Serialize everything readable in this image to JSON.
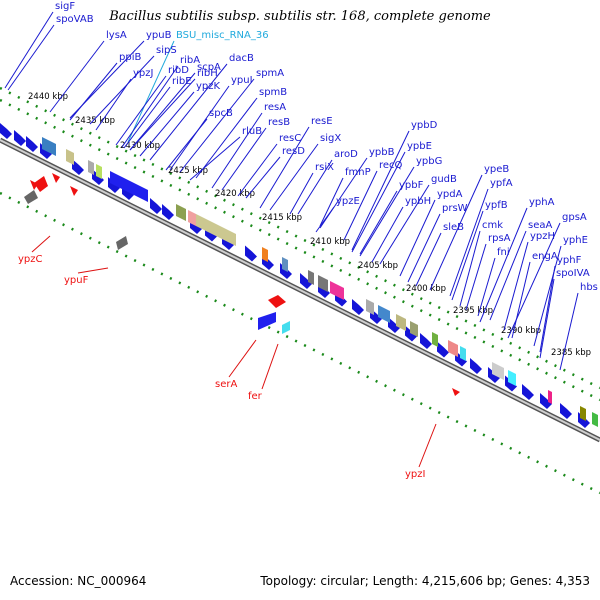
{
  "title": "Bacillus subtilis subsp. subtilis str. 168, complete genome",
  "footer": {
    "accession": "Accession: NC_000964",
    "summary": "Topology: circular; Length: 4,215,606 bp; Genes: 4,353"
  },
  "colors": {
    "forward_gene": "#1515d8",
    "reverse_gene": "#ee1111",
    "label_line_top": "#1a1ad0",
    "label_line_bottom": "#dd1111",
    "rna_label": "#22aadd",
    "tick": "#1b8a1b",
    "backbone": "#888888"
  },
  "scale_ticks": [
    "2440 kbp",
    "2435 kbp",
    "2430 kbp",
    "2425 kbp",
    "2420 kbp",
    "2415 kbp",
    "2410 kbp",
    "2405 kbp",
    "2400 kbp",
    "2395 kbp",
    "2390 kbp",
    "2385 kbp"
  ],
  "top_labels": [
    {
      "text": "sigF",
      "type": "gene"
    },
    {
      "text": "spoVAB",
      "type": "gene"
    },
    {
      "text": "lysA",
      "type": "gene"
    },
    {
      "text": "ypuB",
      "type": "gene"
    },
    {
      "text": "ppiB",
      "type": "gene"
    },
    {
      "text": "sipS",
      "type": "gene"
    },
    {
      "text": "BSU_misc_RNA_36",
      "type": "rna"
    },
    {
      "text": "ypzJ",
      "type": "gene"
    },
    {
      "text": "ribA",
      "type": "gene"
    },
    {
      "text": "ribD",
      "type": "gene"
    },
    {
      "text": "scpA",
      "type": "gene"
    },
    {
      "text": "dacB",
      "type": "gene"
    },
    {
      "text": "ribH",
      "type": "gene"
    },
    {
      "text": "ribE",
      "type": "gene"
    },
    {
      "text": "ypuI",
      "type": "gene"
    },
    {
      "text": "spmA",
      "type": "gene"
    },
    {
      "text": "ypzK",
      "type": "gene"
    },
    {
      "text": "spmB",
      "type": "gene"
    },
    {
      "text": "spcB",
      "type": "gene"
    },
    {
      "text": "resA",
      "type": "gene"
    },
    {
      "text": "rluB",
      "type": "gene"
    },
    {
      "text": "resB",
      "type": "gene"
    },
    {
      "text": "resE",
      "type": "gene"
    },
    {
      "text": "resC",
      "type": "gene"
    },
    {
      "text": "sigX",
      "type": "gene"
    },
    {
      "text": "resD",
      "type": "gene"
    },
    {
      "text": "ypbD",
      "type": "gene"
    },
    {
      "text": "aroD",
      "type": "gene"
    },
    {
      "text": "ypbB",
      "type": "gene"
    },
    {
      "text": "ypbE",
      "type": "gene"
    },
    {
      "text": "rsiX",
      "type": "gene"
    },
    {
      "text": "recQ",
      "type": "gene"
    },
    {
      "text": "ypbG",
      "type": "gene"
    },
    {
      "text": "fmnP",
      "type": "gene"
    },
    {
      "text": "ypbF",
      "type": "gene"
    },
    {
      "text": "gudB",
      "type": "gene"
    },
    {
      "text": "ypeB",
      "type": "gene"
    },
    {
      "text": "ypzE",
      "type": "gene"
    },
    {
      "text": "ypdA",
      "type": "gene"
    },
    {
      "text": "ypfA",
      "type": "gene"
    },
    {
      "text": "ypbH",
      "type": "gene"
    },
    {
      "text": "prsW",
      "type": "gene"
    },
    {
      "text": "ypfB",
      "type": "gene"
    },
    {
      "text": "yphA",
      "type": "gene"
    },
    {
      "text": "sleB",
      "type": "gene"
    },
    {
      "text": "cmk",
      "type": "gene"
    },
    {
      "text": "gpsA",
      "type": "gene"
    },
    {
      "text": "seaA",
      "type": "gene"
    },
    {
      "text": "rpsA",
      "type": "gene"
    },
    {
      "text": "ypzH",
      "type": "gene"
    },
    {
      "text": "yphE",
      "type": "gene"
    },
    {
      "text": "fni",
      "type": "gene"
    },
    {
      "text": "engA",
      "type": "gene"
    },
    {
      "text": "yphF",
      "type": "gene"
    },
    {
      "text": "spoIVA",
      "type": "gene"
    },
    {
      "text": "hbs",
      "type": "gene"
    }
  ],
  "bottom_labels": [
    "ypzC",
    "ypuF",
    "serA",
    "fer",
    "ypzI"
  ]
}
